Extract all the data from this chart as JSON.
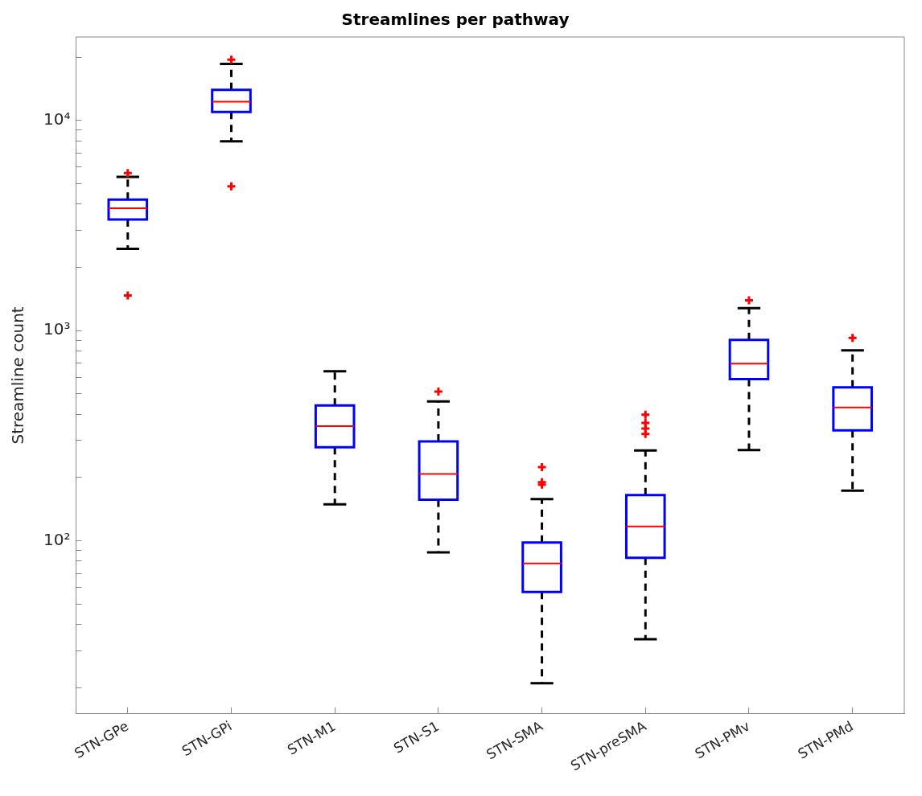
{
  "chart_data": {
    "type": "box",
    "title": "Streamlines per pathway",
    "ylabel": "Streamline count",
    "log": true,
    "color": "#0000ff",
    "categories": [
      "STN-GPe",
      "STN-GPi",
      "STN-M1",
      "STN-S1",
      "STN-SMA",
      "STN-preSMA",
      "STN-PMv",
      "STN-PMd"
    ],
    "boxes": [
      {
        "low": 2450,
        "q1": 3380,
        "median": 3830,
        "q3": 4210,
        "high": 5400,
        "outliers": [
          5620,
          1470
        ]
      },
      {
        "low": 7960,
        "q1": 11000,
        "median": 12300,
        "q3": 14000,
        "high": 18600,
        "outliers": [
          19500,
          4870
        ]
      },
      {
        "low": 149,
        "q1": 279,
        "median": 351,
        "q3": 441,
        "high": 641
      },
      {
        "low": 88,
        "q1": 157,
        "median": 208,
        "q3": 297,
        "high": 461,
        "outliers": [
          513
        ]
      },
      {
        "low": 21,
        "q1": 57,
        "median": 78,
        "q3": 98,
        "high": 158,
        "outliers": [
          224,
          190,
          185
        ]
      },
      {
        "low": 34,
        "q1": 83,
        "median": 117,
        "q3": 165,
        "high": 269,
        "outliers": [
          398,
          364,
          342,
          322
        ]
      },
      {
        "low": 270,
        "q1": 588,
        "median": 697,
        "q3": 904,
        "high": 1280,
        "outliers": [
          1395
        ]
      },
      {
        "low": 173,
        "q1": 335,
        "median": 431,
        "q3": 537,
        "high": 806,
        "outliers": [
          924
        ]
      }
    ],
    "ylim": [
      15,
      25000
    ],
    "yticks": [
      {
        "value": 20,
        "label": null
      },
      {
        "value": 30,
        "label": null
      },
      {
        "value": 40,
        "label": null
      },
      {
        "value": 50,
        "label": null
      },
      {
        "value": 60,
        "label": null
      },
      {
        "value": 70,
        "label": null
      },
      {
        "value": 80,
        "label": null
      },
      {
        "value": 90,
        "label": null
      },
      {
        "value": 100,
        "label": "10²"
      },
      {
        "value": 200,
        "label": null
      },
      {
        "value": 300,
        "label": null
      },
      {
        "value": 400,
        "label": null
      },
      {
        "value": 500,
        "label": null
      },
      {
        "value": 600,
        "label": null
      },
      {
        "value": 700,
        "label": null
      },
      {
        "value": 800,
        "label": null
      },
      {
        "value": 900,
        "label": null
      },
      {
        "value": 1000,
        "label": "10³"
      },
      {
        "value": 2000,
        "label": null
      },
      {
        "value": 3000,
        "label": null
      },
      {
        "value": 4000,
        "label": null
      },
      {
        "value": 5000,
        "label": null
      },
      {
        "value": 6000,
        "label": null
      },
      {
        "value": 7000,
        "label": null
      },
      {
        "value": 8000,
        "label": null
      },
      {
        "value": 9000,
        "label": null
      },
      {
        "value": 10000,
        "label": "10⁴"
      },
      {
        "value": 20000,
        "label": null
      }
    ],
    "grid": false,
    "legend": false
  }
}
